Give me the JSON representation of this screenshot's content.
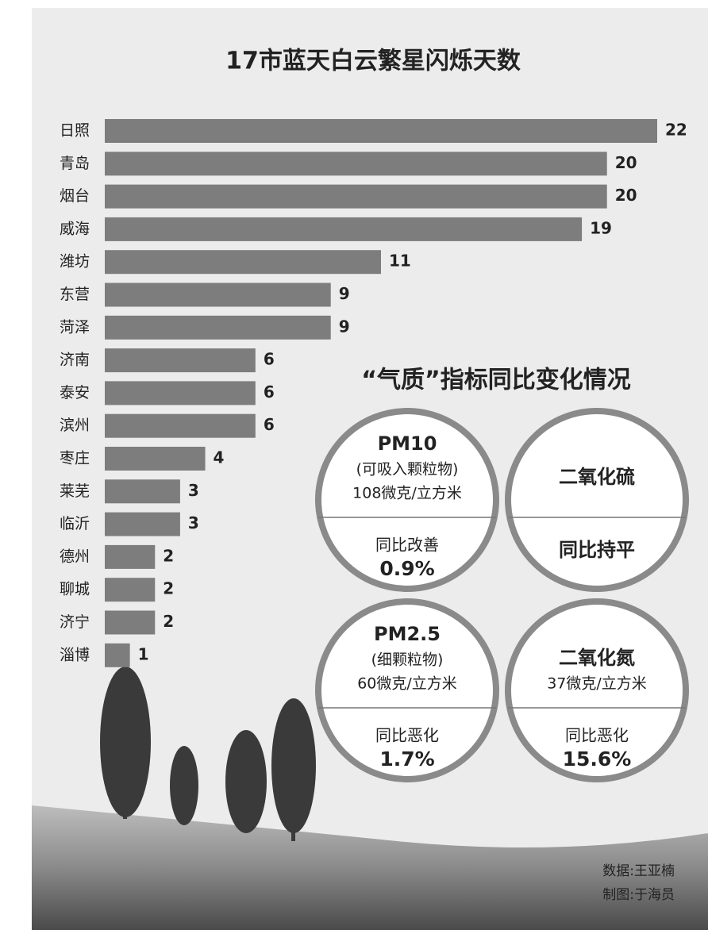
{
  "chart_data": {
    "type": "bar",
    "orientation": "horizontal",
    "title": "17市蓝天白云繁星闪烁天数",
    "categories": [
      "日照",
      "青岛",
      "烟台",
      "威海",
      "潍坊",
      "东营",
      "菏泽",
      "济南",
      "泰安",
      "滨州",
      "枣庄",
      "莱芜",
      "临沂",
      "德州",
      "聊城",
      "济宁",
      "淄博"
    ],
    "values": [
      22,
      20,
      20,
      19,
      11,
      9,
      9,
      6,
      6,
      6,
      4,
      3,
      3,
      2,
      2,
      2,
      1
    ],
    "color": "#7d7d7d",
    "xlim": [
      0,
      22
    ]
  },
  "air_quality": {
    "title": "“气质”指标同比变化情况",
    "items": [
      {
        "name": "PM10",
        "desc": "(可吸入颗粒物)",
        "amount": "108微克/立方米",
        "change": "同比改善",
        "change_value": "0.9%"
      },
      {
        "name": "二氧化硫",
        "change": "同比持平"
      },
      {
        "name": "PM2.5",
        "desc": "(细颗粒物)",
        "amount": "60微克/立方米",
        "change": "同比恶化",
        "change_value": "1.7%"
      },
      {
        "name": "二氧化氮",
        "amount": "37微克/立方米",
        "change": "同比恶化",
        "change_value": "15.6%"
      }
    ]
  },
  "credits": [
    "数据:王亚楠",
    "制图:于海员"
  ]
}
